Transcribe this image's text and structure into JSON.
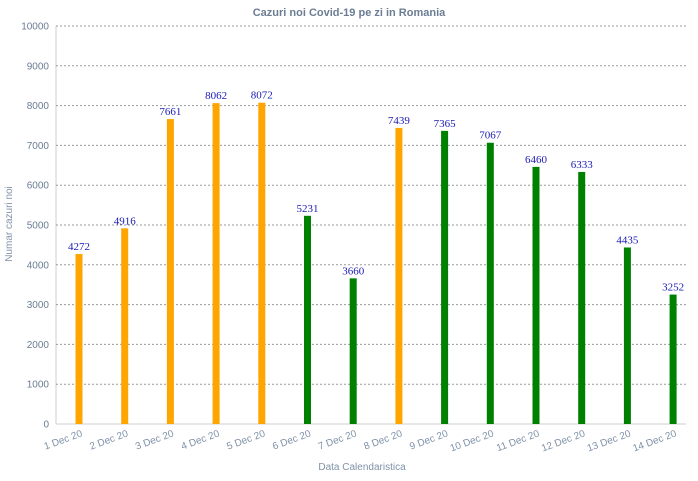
{
  "chart_data": {
    "type": "bar",
    "title": "Cazuri noi Covid-19 pe zi in Romania",
    "xlabel": "Data Calendaristica",
    "ylabel": "Numar cazuri noi",
    "ylim": [
      0,
      10000
    ],
    "yticks": [
      0,
      1000,
      2000,
      3000,
      4000,
      5000,
      6000,
      7000,
      8000,
      9000,
      10000
    ],
    "grid": true,
    "categories": [
      "1 Dec 20",
      "2 Dec 20",
      "3 Dec 20",
      "4 Dec 20",
      "5 Dec 20",
      "6 Dec 20",
      "7 Dec 20",
      "8 Dec 20",
      "9 Dec 20",
      "10 Dec 20",
      "11 Dec 20",
      "12 Dec 20",
      "13 Dec 20",
      "14 Dec 20"
    ],
    "values": [
      4272,
      4916,
      7661,
      8062,
      8072,
      5231,
      3660,
      7439,
      7365,
      7067,
      6460,
      6333,
      4435,
      3252
    ],
    "bar_colors": [
      "#ffa500",
      "#ffa500",
      "#ffa500",
      "#ffa500",
      "#ffa500",
      "#008000",
      "#008000",
      "#ffa500",
      "#008000",
      "#008000",
      "#008000",
      "#008000",
      "#008000",
      "#008000"
    ],
    "label_color": "#1a1ab5"
  }
}
